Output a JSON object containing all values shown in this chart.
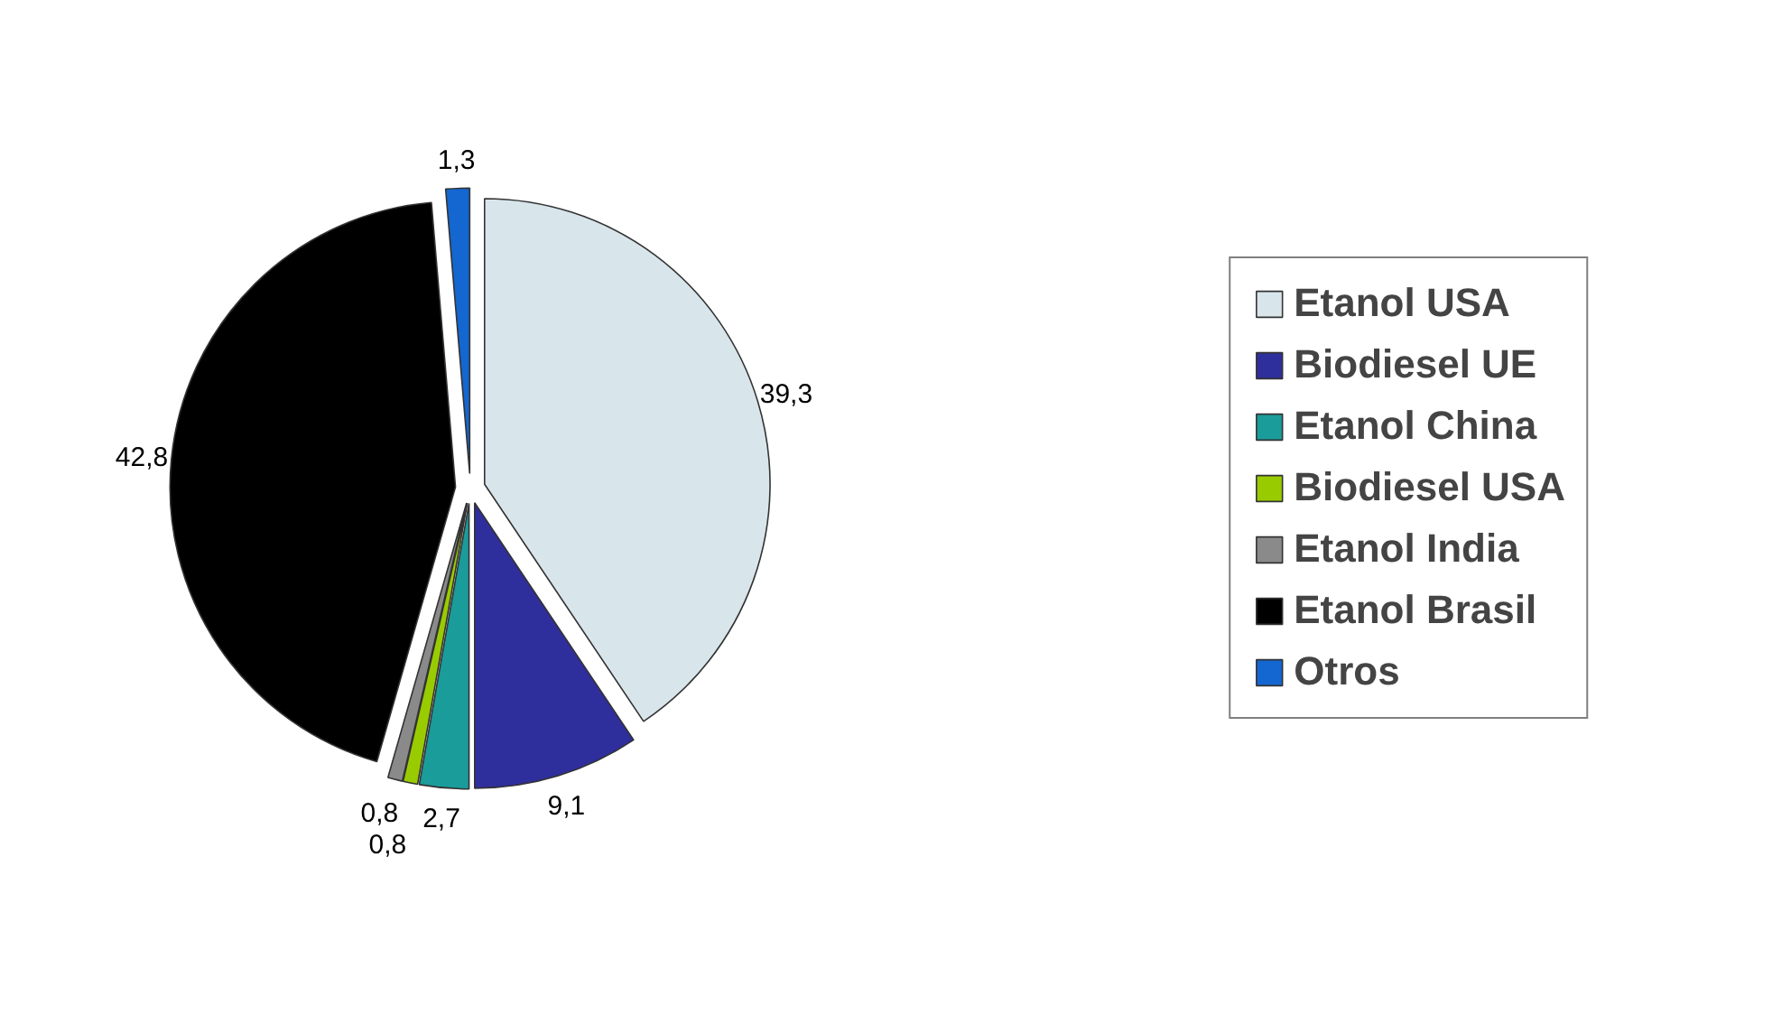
{
  "chart_data": {
    "type": "pie",
    "categories": [
      "Etanol USA",
      "Biodiesel UE",
      "Etanol China",
      "Biodiesel USA",
      "Etanol India",
      "Etanol Brasil",
      "Otros"
    ],
    "values": [
      39.3,
      9.1,
      2.7,
      0.8,
      0.8,
      42.8,
      1.3
    ],
    "value_labels": [
      "39,3",
      "9,1",
      "2,7",
      "0,8",
      "0,8",
      "42,8",
      "1,3"
    ],
    "colors": [
      "#d8e6ec",
      "#2e2e9c",
      "#1a9c9a",
      "#99cc00",
      "#8a8a8a",
      "#000000",
      "#1466d0"
    ],
    "legend": "right"
  }
}
